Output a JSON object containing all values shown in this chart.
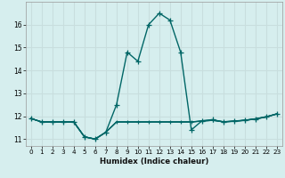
{
  "xlabel": "Humidex (Indice chaleur)",
  "background_color": "#d6eeee",
  "grid_color": "#c8dede",
  "line_color": "#006666",
  "xlim": [
    -0.5,
    23.5
  ],
  "ylim": [
    10.7,
    17.0
  ],
  "yticks": [
    11,
    12,
    13,
    14,
    15,
    16
  ],
  "xticks": [
    0,
    1,
    2,
    3,
    4,
    5,
    6,
    7,
    8,
    9,
    10,
    11,
    12,
    13,
    14,
    15,
    16,
    17,
    18,
    19,
    20,
    21,
    22,
    23
  ],
  "hours": [
    0,
    1,
    2,
    3,
    4,
    5,
    6,
    7,
    8,
    9,
    10,
    11,
    12,
    13,
    14,
    15,
    16,
    17,
    18,
    19,
    20,
    21,
    22,
    23
  ],
  "main_curve": [
    11.9,
    11.75,
    11.75,
    11.75,
    11.75,
    11.1,
    11.0,
    11.3,
    12.5,
    14.8,
    14.4,
    16.0,
    16.5,
    16.2,
    14.8,
    11.4,
    11.8,
    11.85,
    11.75,
    11.78,
    11.82,
    11.88,
    11.97,
    12.1
  ],
  "flat_curve1": [
    11.9,
    11.75,
    11.75,
    11.75,
    11.75,
    11.1,
    11.0,
    11.3,
    11.75,
    11.75,
    11.75,
    11.75,
    11.75,
    11.75,
    11.75,
    11.75,
    11.78,
    11.82,
    11.75,
    11.78,
    11.82,
    11.88,
    11.97,
    12.1
  ],
  "flat_curve2": [
    11.9,
    11.75,
    11.75,
    11.75,
    11.75,
    11.1,
    11.0,
    11.3,
    11.75,
    11.75,
    11.75,
    11.75,
    11.75,
    11.75,
    11.75,
    11.75,
    11.8,
    11.83,
    11.76,
    11.79,
    11.83,
    11.89,
    11.98,
    12.1
  ],
  "flat_curve3": [
    11.9,
    11.75,
    11.75,
    11.75,
    11.75,
    11.1,
    11.0,
    11.3,
    11.75,
    11.75,
    11.75,
    11.75,
    11.75,
    11.75,
    11.75,
    11.75,
    11.79,
    11.82,
    11.76,
    11.78,
    11.82,
    11.88,
    11.96,
    12.1
  ]
}
